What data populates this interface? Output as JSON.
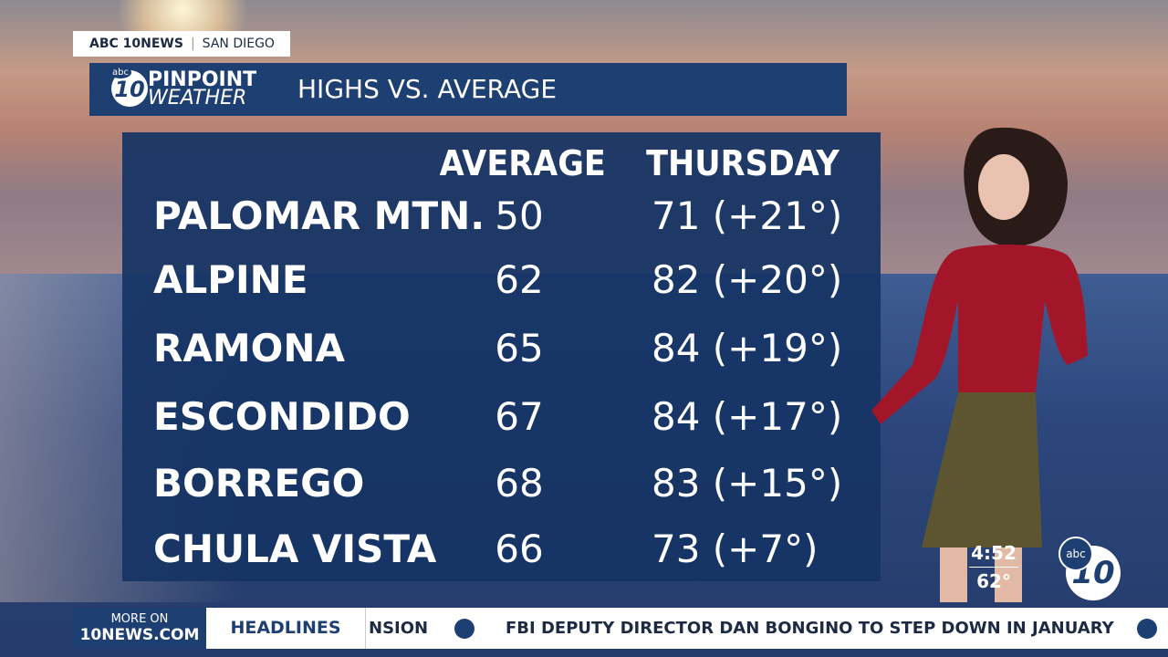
{
  "header": {
    "station": "ABC 10NEWS",
    "location": "SAN DIEGO",
    "logo_network": "abc",
    "logo_number": "10",
    "logo_line1": "PINPOINT",
    "logo_line2": "WEATHER",
    "title": "HIGHS VS. AVERAGE"
  },
  "table": {
    "columns": [
      "AVERAGE",
      "THURSDAY"
    ],
    "rows": [
      [
        "PALOMAR MTN.",
        50,
        "71 (+21°)"
      ],
      [
        "ALPINE",
        62,
        "82 (+20°)"
      ],
      [
        "RAMONA",
        65,
        "84 (+19°)"
      ],
      [
        "ESCONDIDO",
        67,
        "84 (+17°)"
      ],
      [
        "BORREGO",
        68,
        "83 (+15°)"
      ],
      [
        "CHULA VISTA",
        66,
        "73 (+7°)"
      ]
    ]
  },
  "overlay": {
    "time": "4:52",
    "temperature": "62°"
  },
  "ticker": {
    "website_prefix": "MORE ON",
    "website": "10NEWS.COM",
    "label": "HEADLINES",
    "headlines": [
      "NSION",
      "FBI DEPUTY DIRECTOR DAN BONGINO TO STEP DOWN IN JANUARY"
    ]
  }
}
